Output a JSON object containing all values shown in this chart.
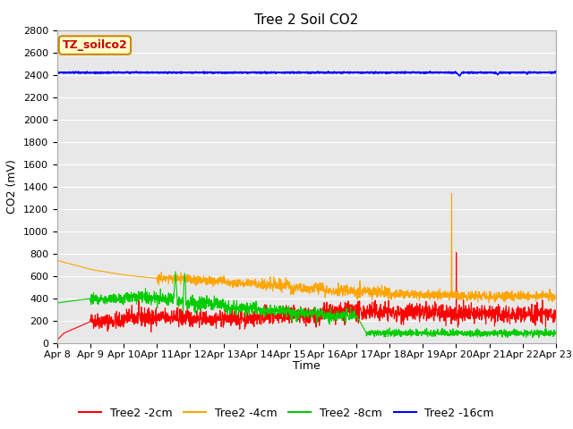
{
  "title": "Tree 2 Soil CO2",
  "ylabel": "CO2 (mV)",
  "xlabel": "Time",
  "legend_label": "TZ_soilco2",
  "series_labels": [
    "Tree2 -2cm",
    "Tree2 -4cm",
    "Tree2 -8cm",
    "Tree2 -16cm"
  ],
  "series_colors": [
    "#ff0000",
    "#ffa500",
    "#00cc00",
    "#0000ff"
  ],
  "ylim": [
    0,
    2800
  ],
  "yticks": [
    0,
    200,
    400,
    600,
    800,
    1000,
    1200,
    1400,
    1600,
    1800,
    2000,
    2200,
    2400,
    2600,
    2800
  ],
  "background_color": "#e8e8e8",
  "grid_color": "#ffffff",
  "title_fontsize": 11,
  "axis_label_fontsize": 9,
  "tick_fontsize": 8,
  "legend_fontsize": 9
}
